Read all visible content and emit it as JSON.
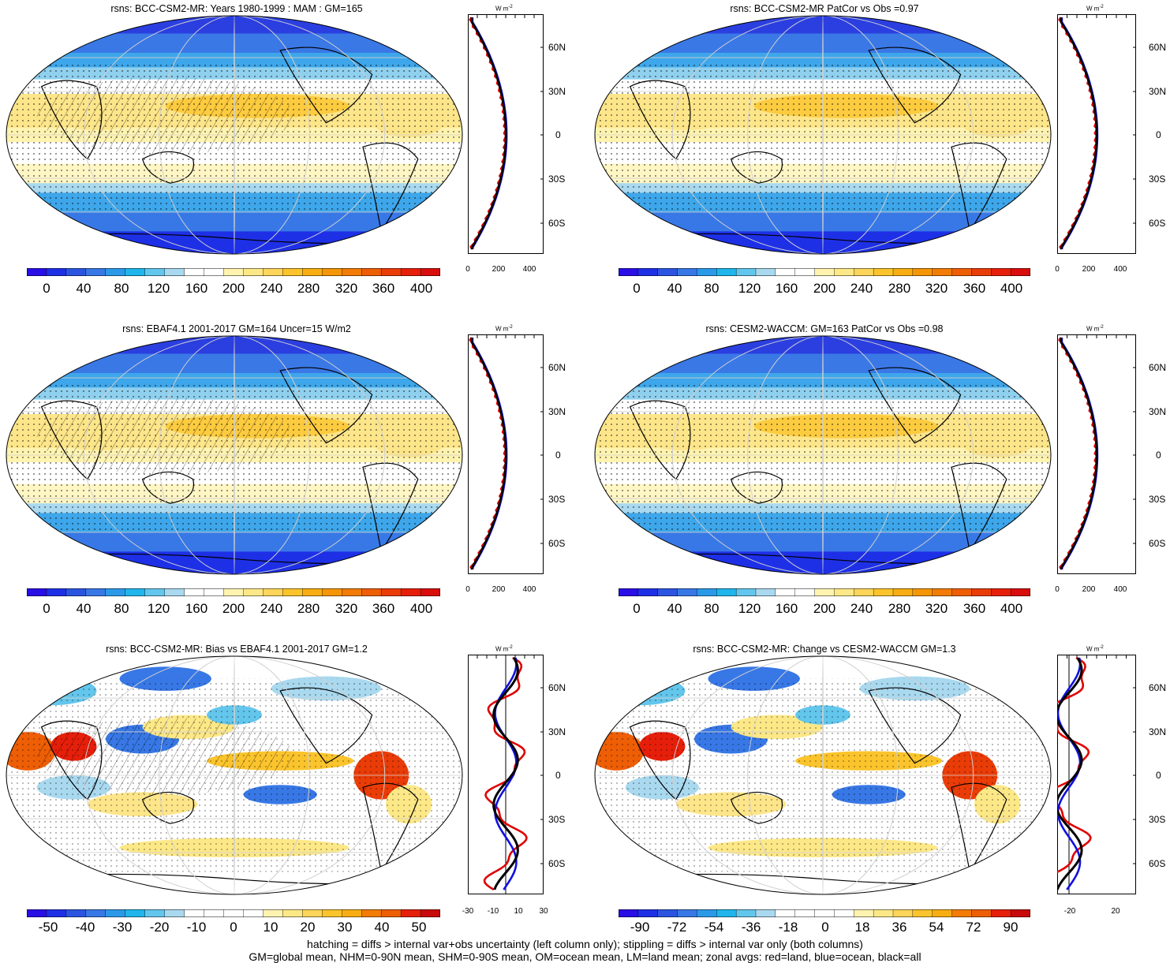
{
  "panels": [
    {
      "title": "rsns: BCC-CSM2-MR: Years 1980-1999 : MAM : GM=165"
    },
    {
      "title": "rsns: BCC-CSM2-MR PatCor vs Obs =0.97"
    },
    {
      "title": "rsns: EBAF4.1 2001-2017 GM=164 Uncer=15 W/m2"
    },
    {
      "title": "rsns: CESM2-WACCM: GM=163 PatCor vs Obs =0.98"
    },
    {
      "title": "rsns: BCC-CSM2-MR: Bias vs EBAF4.1 2001-2017 GM=1.2"
    },
    {
      "title": "rsns: BCC-CSM2-MR: Change vs CESM2-WACCM GM=1.3"
    }
  ],
  "colorbars": {
    "absolute": [
      "0",
      "40",
      "80",
      "120",
      "160",
      "200",
      "240",
      "280",
      "320",
      "360",
      "400"
    ],
    "bias": [
      "-50",
      "-40",
      "-30",
      "-20",
      "-10",
      "0",
      "10",
      "20",
      "30",
      "40",
      "50"
    ],
    "change": [
      "-90",
      "-72",
      "-54",
      "-36",
      "-18",
      "0",
      "18",
      "36",
      "54",
      "72",
      "90"
    ]
  },
  "zonal": {
    "units": "W m",
    "units_sup": "-2",
    "lat_labels": [
      "60N",
      "30N",
      "0",
      "30S",
      "60S"
    ],
    "x_abs": [
      "0",
      "200",
      "400"
    ],
    "x_bias": [
      "-30",
      "-10",
      "10",
      "30"
    ],
    "x_change": [
      "-20",
      "20"
    ]
  },
  "colors": {
    "absolute_scale": [
      "#2a0ee6",
      "#1e30e6",
      "#2b55e0",
      "#3878e6",
      "#2a9ae8",
      "#20b6ec",
      "#63c6ec",
      "#a9d9ef",
      "#ffffff",
      "#ffffff",
      "#fff3b0",
      "#fde887",
      "#fdd55a",
      "#fbc42c",
      "#f8ae12",
      "#f59608",
      "#f27c05",
      "#ee5e05",
      "#ea3c07",
      "#e61f0a",
      "#d80d0c"
    ],
    "land_line": "red",
    "ocean_line": "blue",
    "all_line": "black"
  },
  "footer": {
    "line1": "hatching = diffs > internal var+obs uncertainty (left column only); stippling = diffs > internal var only (both columns)",
    "line2": "GM=global mean, NHM=0-90N mean, SHM=0-90S mean, OM=ocean mean, LM=land mean; zonal avgs: red=land, blue=ocean, black=all"
  }
}
